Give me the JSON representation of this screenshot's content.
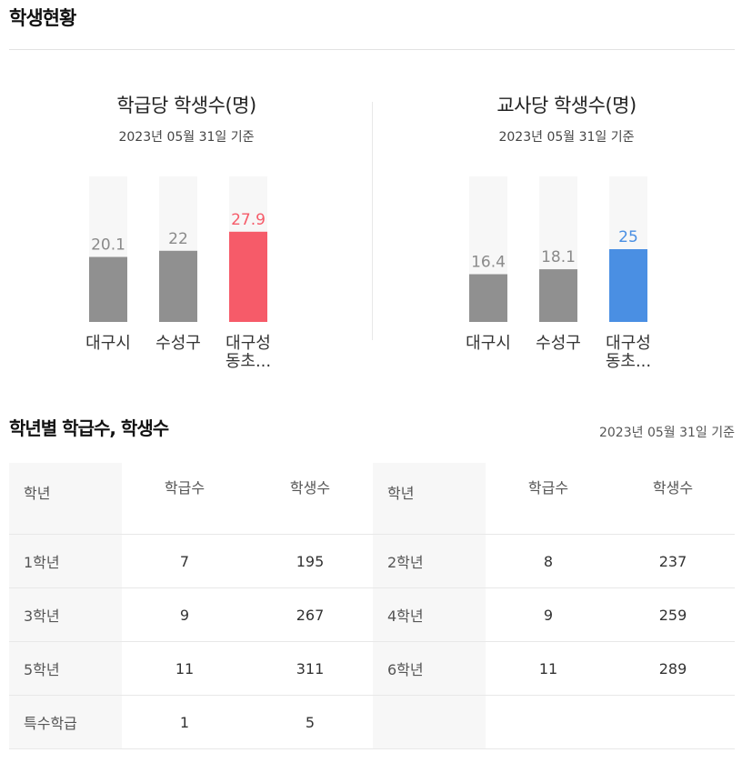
{
  "page_title": "학생현황",
  "charts": [
    {
      "title": "학급당 학생수(명)",
      "date": "2023년 05월 31일 기준",
      "chart_data": {
        "type": "bar",
        "categories": [
          "대구시",
          "수성구",
          "대구성동초..."
        ],
        "display_labels": [
          [
            "대구시"
          ],
          [
            "수성구"
          ],
          [
            "대구성",
            "동초..."
          ]
        ],
        "values": [
          20.1,
          22,
          27.9
        ],
        "value_labels": [
          "20.1",
          "22",
          "27.9"
        ],
        "ylim": [
          0,
          45
        ],
        "colors": [
          "#909090",
          "#909090",
          "#f65b69"
        ],
        "label_colors": [
          "#8a8a8a",
          "#8a8a8a",
          "#f65b69"
        ]
      }
    },
    {
      "title": "교사당 학생수(명)",
      "date": "2023년 05월 31일 기준",
      "chart_data": {
        "type": "bar",
        "categories": [
          "대구시",
          "수성구",
          "대구성동초..."
        ],
        "display_labels": [
          [
            "대구시"
          ],
          [
            "수성구"
          ],
          [
            "대구성",
            "동초..."
          ]
        ],
        "values": [
          16.4,
          18.1,
          25
        ],
        "value_labels": [
          "16.4",
          "18.1",
          "25"
        ],
        "ylim": [
          0,
          50
        ],
        "colors": [
          "#909090",
          "#909090",
          "#4a8fe3"
        ],
        "label_colors": [
          "#8a8a8a",
          "#8a8a8a",
          "#4a8fe3"
        ]
      }
    }
  ],
  "grade_table": {
    "title": "학년별 학급수, 학생수",
    "date": "2023년 05월 31일 기준",
    "headers": {
      "grade": "학년",
      "classes": "학급수",
      "students": "학생수"
    },
    "rows": [
      [
        {
          "grade": "1학년",
          "classes": "7",
          "students": "195"
        },
        {
          "grade": "2학년",
          "classes": "8",
          "students": "237"
        }
      ],
      [
        {
          "grade": "3학년",
          "classes": "9",
          "students": "267"
        },
        {
          "grade": "4학년",
          "classes": "9",
          "students": "259"
        }
      ],
      [
        {
          "grade": "5학년",
          "classes": "11",
          "students": "311"
        },
        {
          "grade": "6학년",
          "classes": "11",
          "students": "289"
        }
      ],
      [
        {
          "grade": "특수학급",
          "classes": "1",
          "students": "5"
        },
        {
          "grade": "",
          "classes": "",
          "students": ""
        }
      ]
    ]
  }
}
